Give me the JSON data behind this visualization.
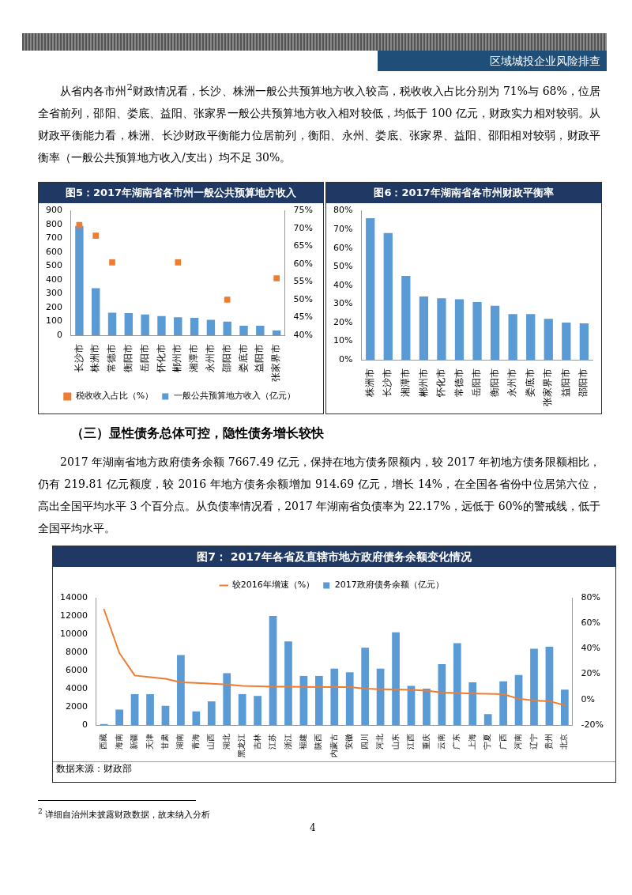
{
  "chart_data": [
    {
      "type": "bar",
      "title": "图5：2017年湖南省各市州一般公共预算地方收入",
      "categories": [
        "长沙市",
        "株洲市",
        "常德市",
        "衡阳市",
        "岳阳市",
        "怀化市",
        "郴州市",
        "湘潭市",
        "永州市",
        "邵阳市",
        "娄底市",
        "益阳市",
        "张家界市"
      ],
      "series": [
        {
          "name": "一般公共预算地方收入（亿元）",
          "color": "#5b9bd5",
          "values": [
            790,
            340,
            163,
            160,
            150,
            138,
            130,
            126,
            111,
            98,
            68,
            68,
            35
          ]
        },
        {
          "name": "税收收入占比（%）",
          "type": "scatter",
          "axis": "y2",
          "marker": "square",
          "color": "#ed7d31",
          "x": [
            "长沙市",
            "株洲市",
            "常德市",
            "衡阳市",
            "岳阳市",
            "怀化市",
            "郴州市",
            "湘潭市",
            "永州市",
            "邵阳市",
            "娄底市",
            "益阳市",
            "张家界市"
          ],
          "values": [
            71,
            68,
            60.5,
            null,
            null,
            null,
            60.5,
            null,
            null,
            50,
            null,
            null,
            56
          ]
        }
      ],
      "ylim": [
        0,
        900
      ],
      "yticks": [
        0,
        100,
        200,
        300,
        400,
        500,
        600,
        700,
        800,
        900
      ],
      "y2lim": [
        40,
        75
      ],
      "y2ticks": [
        {
          "value": 40,
          "label": "40%"
        },
        {
          "value": 45,
          "label": "45%"
        },
        {
          "value": 50,
          "label": "50%"
        },
        {
          "value": 55,
          "label": "55%"
        },
        {
          "value": 60,
          "label": "60%"
        },
        {
          "value": 65,
          "label": "65%"
        },
        {
          "value": 70,
          "label": "70%"
        },
        {
          "value": 75,
          "label": "75%"
        }
      ],
      "legend": "bottom",
      "annotations": [
        "区域城投企业风险排查",
        "从省内各市州$^{2}$财政情况看，长沙、株洲一般公共预算地方收入较高，税收收入占比分别为 71%与 68%，位居全省前列，邵阳、娄底、益阳、张家界一般公共预算地方收入相对较低，均低于 100 亿元，财政实力相对较弱。从财政平衡能力看，株洲、长沙财政平衡能力位居前列，衡阳、永州、娄底、张家界、益阳、邵阳相对较弱，财政平衡率（一般公共预算地方收入/支出）均不足 30%。"
      ]
    },
    {
      "type": "bar",
      "title": "图6：2017年湖南省各市州财政平衡率",
      "categories": [
        "株洲市",
        "长沙市",
        "湘潭市",
        "郴州市",
        "怀化市",
        "常德市",
        "岳阳市",
        "衡阳市",
        "永州市",
        "娄底市",
        "张家界市",
        "益阳市",
        "邵阳市"
      ],
      "values": [
        76,
        68,
        45,
        34,
        33,
        32.5,
        31,
        29,
        24.5,
        24.5,
        22,
        20,
        19.5
      ],
      "color": "#5b9bd5",
      "ylim": [
        0,
        80
      ],
      "yticks": [
        {
          "value": 0,
          "label": "0%"
        },
        {
          "value": 10,
          "label": "10%"
        },
        {
          "value": 20,
          "label": "20%"
        },
        {
          "value": 30,
          "label": "30%"
        },
        {
          "value": 40,
          "label": "40%"
        },
        {
          "value": 50,
          "label": "50%"
        },
        {
          "value": 60,
          "label": "60%"
        },
        {
          "value": 70,
          "label": "70%"
        },
        {
          "value": 80,
          "label": "80%"
        }
      ]
    },
    {
      "type": "bar",
      "title": "图7： 2017年各省及直辖市地方政府债务余额变化情况",
      "categories": [
        "西藏",
        "海南",
        "新疆",
        "天津",
        "甘肃",
        "湖南",
        "青海",
        "山西",
        "湖北",
        "黑龙江",
        "吉林",
        "江苏",
        "浙江",
        "福建",
        "陕西",
        "内蒙古",
        "安徽",
        "四川",
        "河北",
        "山东",
        "江西",
        "重庆",
        "云南",
        "广东",
        "上海",
        "宁夏",
        "广西",
        "河南",
        "辽宁",
        "贵州",
        "北京"
      ],
      "series": [
        {
          "name": "2017政府债务余额（亿元）",
          "color": "#5b9bd5",
          "values": [
            100,
            1700,
            3400,
            3400,
            2100,
            7700,
            1500,
            2600,
            5700,
            3400,
            3200,
            12000,
            9200,
            5400,
            5400,
            6200,
            5800,
            8500,
            6200,
            10200,
            4300,
            4000,
            6700,
            9000,
            4700,
            1200,
            4800,
            5500,
            8400,
            8600,
            3900
          ]
        },
        {
          "name": "较2016年增速（%）",
          "type": "line",
          "axis": "y2",
          "marker": "none",
          "color": "#ed7d31",
          "values": [
            70.7,
            36.5,
            18.9,
            17.6,
            16.3,
            13.6,
            13,
            12.5,
            11.9,
            10.8,
            10.4,
            10.2,
            10.2,
            10,
            9.8,
            9.8,
            9.8,
            8.5,
            8.1,
            7.9,
            7.6,
            7,
            5.5,
            5.1,
            4.7,
            4.5,
            4.2,
            0.6,
            -0.8,
            -1.3,
            -4.5
          ]
        }
      ],
      "ylim": [
        0,
        14000
      ],
      "yticks": [
        0,
        2000,
        4000,
        6000,
        8000,
        10000,
        12000,
        14000
      ],
      "y2lim": [
        -20,
        80
      ],
      "y2ticks": [
        {
          "value": -20,
          "label": "-20%"
        },
        {
          "value": 0,
          "label": "0%"
        },
        {
          "value": 20,
          "label": "20%"
        },
        {
          "value": 40,
          "label": "40%"
        },
        {
          "value": 60,
          "label": "60%"
        },
        {
          "value": 80,
          "label": "80%"
        }
      ],
      "legend": "top",
      "annotations": [
        "（三）显性债务总体可控，隐性债务增长较快",
        "2017 年湖南省地方政府债务余额 7667.49 亿元，保持在地方债务限额内，较 2017 年初地方债务限额相比，仍有 219.81 亿元额度，较 2016 年地方债务余额增加 914.69 亿元，增长 14%，在全国各省份中位居第六位，高出全国平均水平 3 个百分点。从负债率情况看，2017 年湖南省负债率为 22.17%，远低于 60%的警戒线，低于全国平均水平。",
        "数据来源：财政部",
        "$^{2}$ 详细自治州未披露财政数据，故未纳入分析",
        "4"
      ]
    }
  ]
}
